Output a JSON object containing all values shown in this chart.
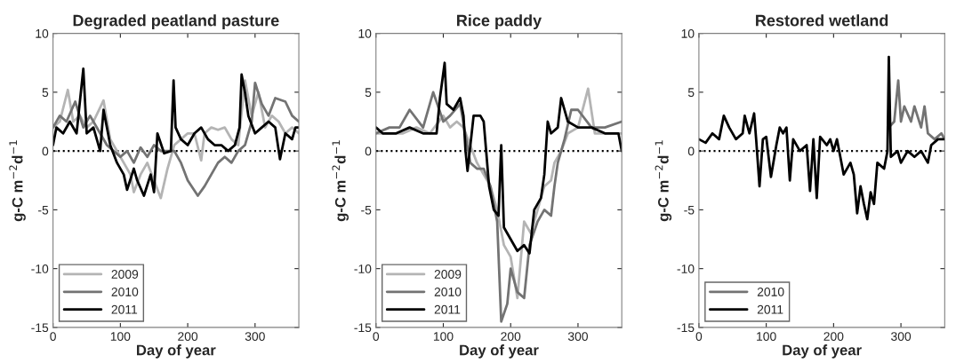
{
  "chart_data": [
    {
      "type": "line",
      "title": "Degraded peatland pasture",
      "xlabel": "Day of year",
      "ylabel": "g-C m$^{−2}$d$^{−1}$",
      "xlim": [
        0,
        365
      ],
      "ylim": [
        -15,
        10
      ],
      "xticks": [
        0,
        100,
        200,
        300
      ],
      "yticks": [
        -15,
        -10,
        -5,
        0,
        5,
        10
      ],
      "legend": "bottom left",
      "grid": false,
      "ref_lines": [
        {
          "axis": "y",
          "value": 0,
          "line_style": "dotted",
          "color": "#000000"
        }
      ],
      "series": [
        {
          "name": "2009",
          "color": "#b4b4b4",
          "x": [
            0,
            10,
            22,
            30,
            40,
            50,
            60,
            75,
            85,
            95,
            105,
            115,
            120,
            130,
            140,
            150,
            160,
            170,
            180,
            190,
            200,
            210,
            220,
            225,
            235,
            245,
            255,
            265,
            275,
            285,
            295,
            305,
            315,
            325,
            335,
            345,
            355,
            365
          ],
          "values": [
            2,
            2.5,
            5.2,
            2.5,
            3,
            2,
            2.5,
            4.3,
            1,
            0,
            -1,
            -2,
            -3.5,
            -2,
            -1,
            -2.5,
            -4,
            -1.5,
            0.5,
            1,
            1.5,
            1.5,
            -0.8,
            1.5,
            2,
            1.8,
            2,
            1,
            0.5,
            6,
            3,
            5,
            2,
            3,
            2.5,
            1.5,
            2,
            1.5
          ]
        },
        {
          "name": "2010",
          "color": "#737373",
          "x": [
            0,
            10,
            20,
            33,
            45,
            55,
            70,
            80,
            90,
            100,
            110,
            120,
            130,
            140,
            150,
            160,
            170,
            180,
            190,
            200,
            215,
            225,
            235,
            245,
            255,
            265,
            275,
            285,
            295,
            300,
            310,
            320,
            330,
            345,
            355,
            365
          ],
          "values": [
            2,
            3,
            2.5,
            4.2,
            2,
            3,
            1.5,
            0.5,
            0,
            -0.5,
            0,
            -1,
            0.3,
            -0.5,
            0.5,
            0,
            0,
            0,
            -1,
            -2.5,
            -3.8,
            -3,
            -2,
            -1,
            -0.5,
            -1,
            0,
            0.5,
            2.5,
            5.8,
            4,
            3,
            4.5,
            4.2,
            3,
            2.5
          ]
        },
        {
          "name": "2011",
          "color": "#000000",
          "x": [
            0,
            5,
            15,
            25,
            35,
            45,
            50,
            60,
            70,
            75,
            85,
            95,
            105,
            110,
            120,
            125,
            135,
            145,
            150,
            155,
            165,
            175,
            179,
            182,
            190,
            200,
            210,
            220,
            230,
            240,
            250,
            260,
            270,
            277,
            280,
            285,
            290,
            300,
            310,
            320,
            330,
            337,
            345,
            355,
            360,
            365
          ],
          "values": [
            0.5,
            2,
            1.5,
            2.5,
            1.5,
            7,
            1.5,
            2,
            0,
            3.5,
            0.5,
            -1,
            -2,
            -3.3,
            -1.5,
            -2.5,
            -3.8,
            -2,
            -3.5,
            1.5,
            -0.2,
            0,
            6,
            2,
            1,
            0.5,
            1.5,
            2,
            1,
            0.5,
            0.5,
            0,
            0.5,
            2,
            6.5,
            5,
            3,
            1.5,
            2,
            2.5,
            2,
            -0.7,
            1.5,
            1,
            2,
            2
          ]
        }
      ]
    },
    {
      "type": "line",
      "title": "Rice paddy",
      "xlabel": "Day of year",
      "ylabel": "g-C m$^{−2}$d$^{−1}$",
      "xlim": [
        0,
        365
      ],
      "ylim": [
        -15,
        10
      ],
      "xticks": [
        0,
        100,
        200,
        300
      ],
      "yticks": [
        -15,
        -10,
        -5,
        0,
        5,
        10
      ],
      "legend": "bottom left",
      "grid": false,
      "ref_lines": [
        {
          "axis": "y",
          "value": 0,
          "line_style": "dotted",
          "color": "#000000"
        }
      ],
      "series": [
        {
          "name": "2009",
          "color": "#b4b4b4",
          "x": [
            0,
            20,
            40,
            60,
            80,
            100,
            110,
            120,
            130,
            140,
            150,
            160,
            170,
            180,
            190,
            200,
            210,
            220,
            230,
            240,
            250,
            260,
            265,
            275,
            285,
            300,
            315,
            325,
            340,
            365
          ],
          "values": [
            1.5,
            1.5,
            1.5,
            2,
            1.5,
            3,
            2,
            2.5,
            2,
            0.5,
            -1,
            -2,
            -3,
            -5,
            -8,
            -9,
            -12.5,
            -6,
            -7,
            -5,
            -3,
            -2.5,
            -1,
            0,
            1.5,
            2,
            5.3,
            1.5,
            1.5,
            1.5
          ]
        },
        {
          "name": "2010",
          "color": "#737373",
          "x": [
            0,
            20,
            35,
            50,
            70,
            85,
            100,
            110,
            125,
            140,
            150,
            160,
            170,
            180,
            186,
            195,
            200,
            210,
            220,
            228,
            240,
            250,
            260,
            265,
            270,
            280,
            290,
            300,
            320,
            340,
            365
          ],
          "values": [
            1.5,
            2,
            2,
            3.5,
            2,
            5,
            2.5,
            3,
            4,
            -1,
            -1.5,
            -1.5,
            -3,
            -6,
            -14.5,
            -13,
            -10,
            -12,
            -12.5,
            -8,
            -6,
            -5,
            -5.5,
            -3,
            -1,
            1,
            3.5,
            3.5,
            2,
            2,
            2.5
          ]
        },
        {
          "name": "2011",
          "color": "#000000",
          "x": [
            0,
            10,
            30,
            50,
            70,
            90,
            95,
            102,
            105,
            115,
            125,
            130,
            133,
            136,
            145,
            155,
            160,
            168,
            175,
            182,
            186,
            190,
            200,
            210,
            220,
            228,
            235,
            245,
            250,
            255,
            260,
            270,
            275,
            285,
            300,
            320,
            340,
            360,
            365
          ],
          "values": [
            2,
            1.5,
            1.5,
            2,
            1.5,
            1.5,
            4.5,
            7.5,
            4,
            3.5,
            4.5,
            3,
            0,
            -1.7,
            3,
            3,
            2.5,
            -3,
            -5,
            -5.5,
            0.5,
            -6.5,
            -7.5,
            -8.5,
            -8,
            -8.7,
            -5,
            -4,
            -2,
            2.5,
            1.5,
            2,
            4.5,
            2.5,
            2,
            2,
            1.5,
            1.5,
            0
          ]
        }
      ]
    },
    {
      "type": "line",
      "title": "Restored wetland",
      "xlabel": "Day of year",
      "ylabel": "g-C m$^{−2}$d$^{−1}$",
      "xlim": [
        0,
        365
      ],
      "ylim": [
        -15,
        10
      ],
      "xticks": [
        0,
        100,
        200,
        300
      ],
      "yticks": [
        -15,
        -10,
        -5,
        0,
        5,
        10
      ],
      "legend": "bottom left",
      "grid": false,
      "ref_lines": [
        {
          "axis": "y",
          "value": 0,
          "line_style": "dotted",
          "color": "#000000"
        }
      ],
      "series": [
        {
          "name": "2010",
          "color": "#737373",
          "x": [
            282,
            290,
            296,
            300,
            305,
            315,
            320,
            330,
            335,
            340,
            350,
            360,
            365
          ],
          "values": [
            2,
            2.5,
            6,
            2.5,
            3.8,
            2.5,
            3.8,
            2,
            3.8,
            1.5,
            1,
            1.5,
            1
          ]
        },
        {
          "name": "2011",
          "color": "#000000",
          "x": [
            0,
            10,
            20,
            30,
            37,
            45,
            55,
            65,
            68,
            75,
            82,
            85,
            90,
            95,
            100,
            107,
            115,
            120,
            125,
            130,
            135,
            140,
            150,
            160,
            165,
            170,
            175,
            180,
            190,
            195,
            200,
            205,
            210,
            215,
            225,
            230,
            235,
            240,
            245,
            250,
            255,
            260,
            265,
            275,
            280,
            282,
            285,
            295,
            300,
            310,
            320,
            330,
            340,
            345,
            355,
            365
          ],
          "values": [
            1,
            0.7,
            1.5,
            1,
            3,
            2,
            1,
            1.5,
            3,
            1.5,
            3.2,
            1,
            -3,
            1,
            1.2,
            -2.2,
            0.5,
            2,
            1.5,
            2,
            -2.5,
            1,
            0,
            0.5,
            -3.4,
            1,
            -4,
            1.2,
            0.5,
            1,
            0,
            1,
            -0.5,
            -2,
            -1,
            -2,
            -5.3,
            -3,
            -4.5,
            -5.8,
            -3.5,
            -4.5,
            -1,
            -1.5,
            0,
            8,
            -0.5,
            0,
            -1,
            0,
            -0.5,
            0,
            -1,
            0.5,
            1,
            1
          ]
        }
      ]
    }
  ]
}
